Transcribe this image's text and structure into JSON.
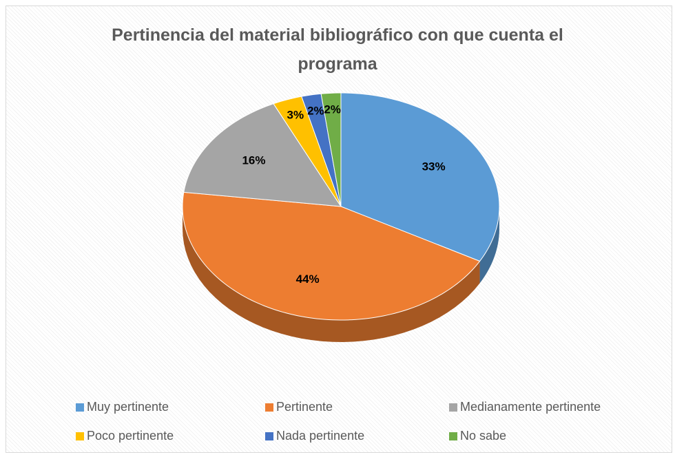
{
  "chart_data": {
    "type": "pie",
    "title": "Pertinencia del material bibliográfico con que cuenta el programa",
    "categories": [
      "Muy pertinente",
      "Pertinente",
      "Medianamente pertinente",
      "Poco pertinente",
      "Nada pertinente",
      "No sabe"
    ],
    "values": [
      33,
      44,
      16,
      3,
      2,
      2
    ],
    "value_labels": [
      "33%",
      "44%",
      "16%",
      "3%",
      "2%",
      "2%"
    ],
    "colors": [
      "#5b9bd5",
      "#ed7d31",
      "#a5a5a5",
      "#ffc000",
      "#4472c4",
      "#70ad47"
    ],
    "legend": "bottom"
  }
}
